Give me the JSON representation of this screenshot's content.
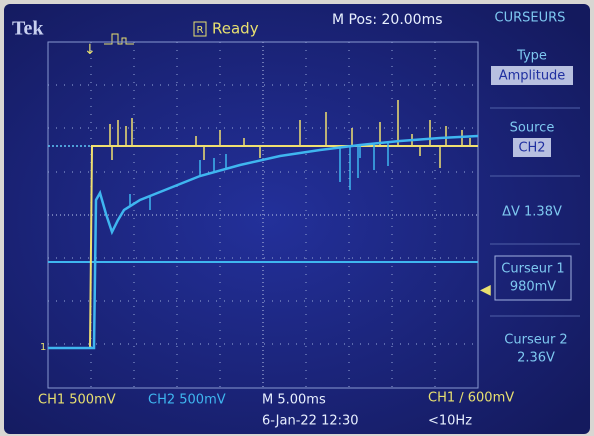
{
  "header": {
    "brand": "Tek",
    "status": "Ready",
    "status_icon": "R",
    "position": "M Pos: 20.00ms"
  },
  "menu": {
    "title": "CURSEURS",
    "items": [
      {
        "label": "Type",
        "value": "Amplitude"
      },
      {
        "label": "Source",
        "value": "CH2"
      },
      {
        "label": "ΔV 1.38V"
      },
      {
        "label": "Curseur 1",
        "value": "980mV"
      },
      {
        "label": "Curseur 2",
        "value": "2.36V"
      }
    ]
  },
  "screen": {
    "ch1_marker": "1"
  },
  "footer": {
    "ch1": "CH1  500mV",
    "ch2": "CH2  500mV",
    "timebase": "M 5.00ms",
    "date": "6-Jan-22 12:30",
    "trigger": "CH1 ∕ 600mV",
    "frequency": "<10Hz"
  }
}
